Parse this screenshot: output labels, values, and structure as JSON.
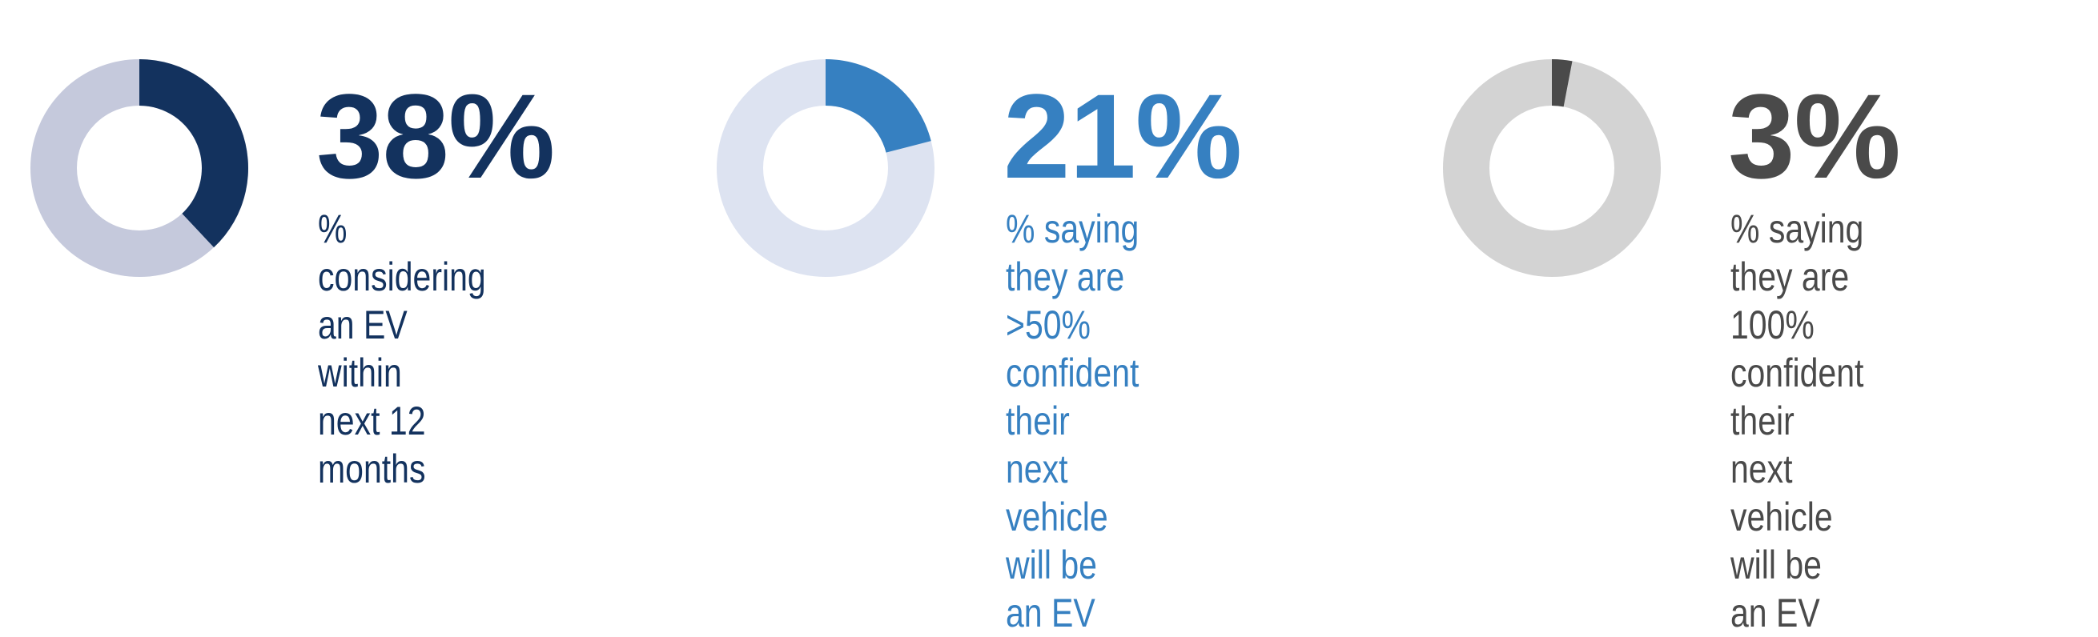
{
  "colors": {
    "stat1_fill": "#13325e",
    "stat1_track": "#c5c9dc",
    "stat2_fill": "#3680c1",
    "stat2_track": "#dde3f1",
    "stat3_fill": "#4a4a4a",
    "stat3_track": "#d3d3d3",
    "background": "#ffffff"
  },
  "stats": [
    {
      "value_label": "38%",
      "caption": "% considering\nan EV within\nnext 12 months"
    },
    {
      "value_label": "21%",
      "caption": "% saying they are\n>50% confident\ntheir next vehicle\nwill be an EV"
    },
    {
      "value_label": "3%",
      "caption": "% saying they are\n100% confident\ntheir next vehicle\nwill be an EV"
    }
  ],
  "chart_data": [
    {
      "type": "pie",
      "categories": [
        "considering an EV within next 12 months",
        "other"
      ],
      "values": [
        38,
        62
      ],
      "title": "38%"
    },
    {
      "type": "pie",
      "categories": [
        ">50% confident next vehicle will be an EV",
        "other"
      ],
      "values": [
        21,
        79
      ],
      "title": "21%"
    },
    {
      "type": "pie",
      "categories": [
        "100% confident next vehicle will be an EV",
        "other"
      ],
      "values": [
        3,
        97
      ],
      "title": "3%"
    }
  ]
}
